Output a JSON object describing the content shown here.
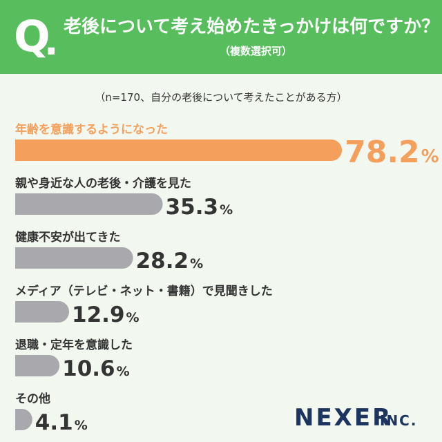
{
  "header": {
    "q_mark": "Q",
    "q_dot": ".",
    "title": "老後について考え始めたきっかけは何ですか？",
    "subtitle": "（複数選択可）"
  },
  "note": "（n=170、自分の老後について考えたことがある方）",
  "brand": {
    "name": "NEXER",
    "suffix": "INC."
  },
  "colors": {
    "header": "#58bd5d",
    "highlight": "#f4a05c",
    "bar": "#a8a8ad",
    "text": "#333333"
  },
  "chart_data": {
    "type": "bar",
    "orientation": "horizontal",
    "unit": "%",
    "categories": [
      "年齢を意識するようになった",
      "親や身近な人の老後・介護を見た",
      "健康不安が出てきた",
      "メディア（テレビ・ネット・書籍）で見聞きした",
      "退職・定年を意識した",
      "その他"
    ],
    "values": [
      78.2,
      35.3,
      28.2,
      12.9,
      10.6,
      4.1
    ],
    "value_labels": [
      "78.2",
      "35.3",
      "28.2",
      "12.9",
      "10.6",
      "4.1"
    ],
    "highlight_index": 0,
    "xlim": [
      0,
      100
    ]
  }
}
